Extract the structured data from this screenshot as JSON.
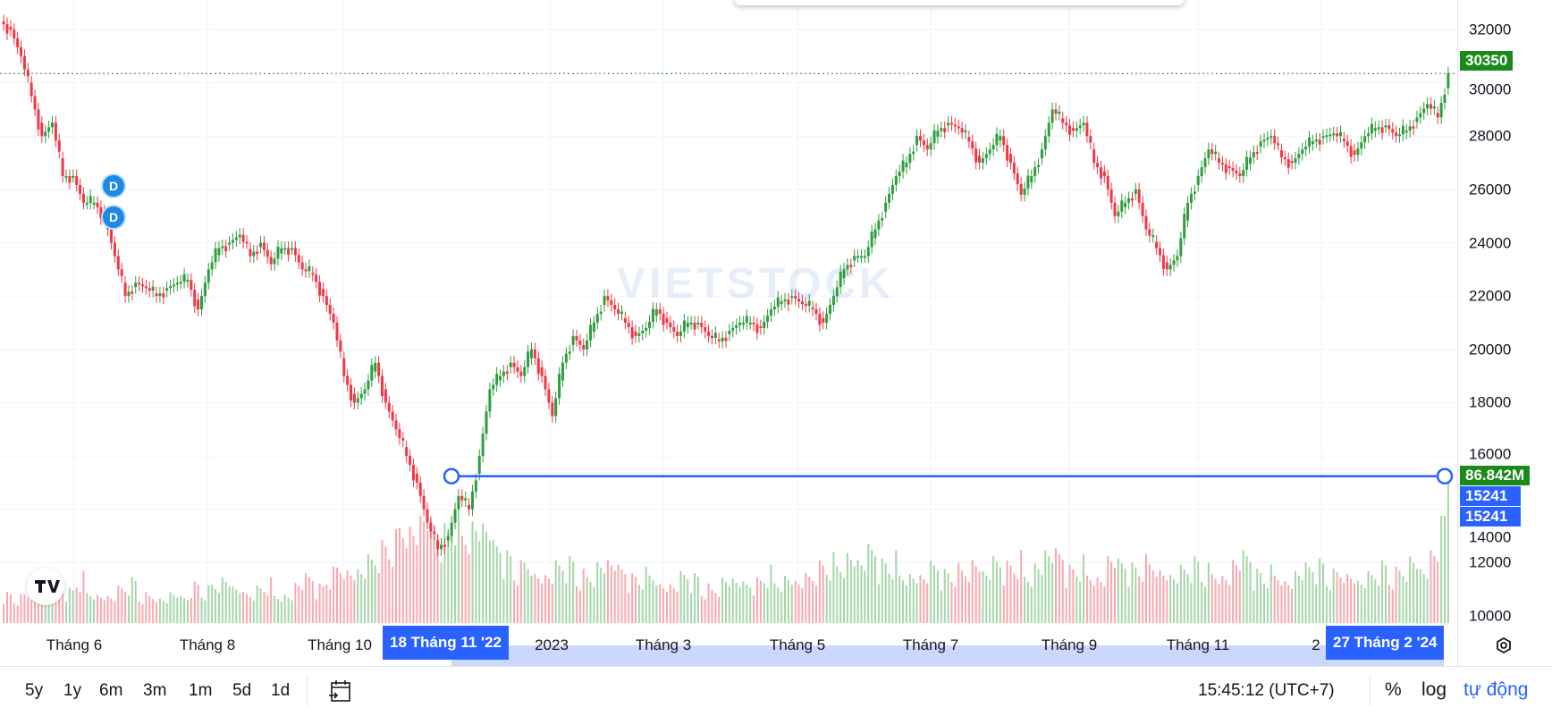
{
  "chart_data": {
    "type": "candlestick",
    "interval": "daily",
    "y_axis": {
      "ylim": [
        10000,
        32000
      ],
      "ticks": [
        "32000",
        "30000",
        "28000",
        "26000",
        "24000",
        "22000",
        "20000",
        "18000",
        "16000",
        "14000",
        "12000",
        "10000"
      ]
    },
    "x_axis": {
      "tick_labels": [
        "Tháng 6",
        "Tháng 8",
        "Tháng 10",
        "2023",
        "Tháng 3",
        "Tháng 5",
        "Tháng 7",
        "Tháng 9",
        "Tháng 11",
        "2"
      ]
    },
    "closes": [
      32000,
      31000,
      29500,
      28000,
      28500,
      26500,
      26500,
      25500,
      25500,
      25000,
      23500,
      22000,
      22500,
      22300,
      22000,
      22300,
      22500,
      22600,
      21500,
      23000,
      23800,
      24000,
      24300,
      23500,
      24000,
      23200,
      23800,
      23800,
      23000,
      22800,
      22000,
      21000,
      19000,
      18000,
      18500,
      19500,
      18000,
      17000,
      16000,
      15000,
      13500,
      12500,
      13000,
      14500,
      14000,
      16000,
      18500,
      19000,
      19500,
      19000,
      20000,
      19000,
      17500,
      19500,
      20500,
      20000,
      21000,
      22000,
      21500,
      21000,
      20500,
      20800,
      21500,
      21000,
      20500,
      21000,
      21000,
      20500,
      20300,
      20700,
      21000,
      21000,
      20800,
      21500,
      21800,
      22000,
      21700,
      21500,
      21000,
      22000,
      23000,
      23500,
      23500,
      24500,
      25500,
      26500,
      27000,
      28000,
      27500,
      28200,
      28500,
      28300,
      27800,
      27000,
      27500,
      28000,
      27000,
      25800,
      26500,
      27500,
      29000,
      28500,
      28200,
      28500,
      27000,
      26500,
      25000,
      25500,
      26000,
      24500,
      23800,
      23000,
      23500,
      25500,
      26500,
      27500,
      27000,
      26800,
      26500,
      27200,
      27800,
      28000,
      27200,
      27000,
      27500,
      27800,
      28000,
      28100,
      27800,
      27300,
      28000,
      28300,
      28400,
      28000,
      28200,
      28700,
      29200,
      28700,
      30350
    ],
    "volumes_millions": [
      15,
      14,
      18,
      20,
      16,
      22,
      17,
      25,
      19,
      16,
      14,
      18,
      22,
      15,
      17,
      14,
      16,
      13,
      20,
      18,
      24,
      26,
      19,
      15,
      18,
      22,
      17,
      16,
      21,
      24,
      19,
      27,
      35,
      30,
      28,
      33,
      40,
      45,
      60,
      55,
      58,
      50,
      48,
      62,
      55,
      58,
      52,
      40,
      35,
      30,
      38,
      28,
      25,
      30,
      32,
      26,
      29,
      35,
      33,
      28,
      24,
      27,
      30,
      22,
      20,
      25,
      24,
      19,
      21,
      26,
      23,
      20,
      22,
      28,
      25,
      27,
      22,
      24,
      30,
      34,
      36,
      40,
      33,
      38,
      31,
      35,
      30,
      28,
      25,
      30,
      26,
      29,
      33,
      36,
      27,
      32,
      30,
      35,
      29,
      34,
      38,
      36,
      28,
      33,
      30,
      26,
      35,
      31,
      29,
      33,
      37,
      30,
      25,
      28,
      32,
      29,
      31,
      27,
      33,
      35,
      26,
      28,
      30,
      24,
      27,
      29,
      31,
      26,
      32,
      28,
      22,
      25,
      30,
      27,
      33,
      38,
      28,
      35,
      86.842
    ],
    "last_price": "30350",
    "last_volume": "86.842M",
    "measure": {
      "price": "15241",
      "price_label_2": "15241",
      "from_label": "18 Tháng 11 '22",
      "to_label": "27 Tháng 2 '24"
    },
    "markers": [
      {
        "label": "D"
      },
      {
        "label": "D"
      }
    ],
    "colors": {
      "up": "#2e9e3e",
      "down": "#f23645",
      "up_volume": "#a5d6a7",
      "down_volume": "#f8a8ae",
      "measure": "#2962ff",
      "last_price_tag": "#1b8a1b"
    },
    "grid": true
  },
  "watermark": "VIETSTOCK",
  "bottom_bar": {
    "ranges": [
      "5y",
      "1y",
      "6m",
      "3m",
      "1m",
      "5d",
      "1d"
    ],
    "time": "15:45:12 (UTC+7)",
    "percent": "%",
    "log": "log",
    "auto": "tự động"
  }
}
